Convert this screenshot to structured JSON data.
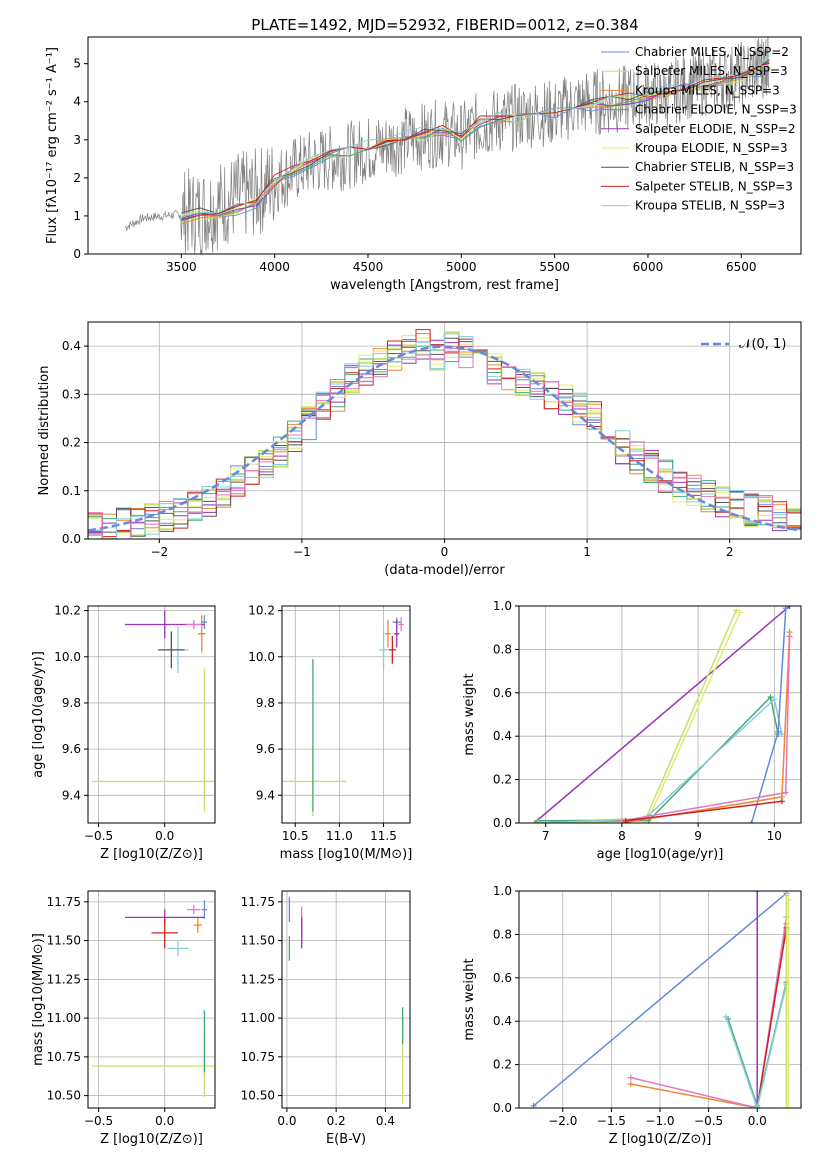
{
  "figure": {
    "title": "PLATE=1492, MJD=52932, FIBERID=0012, z=0.384"
  },
  "chart_data": [
    {
      "type": "line",
      "panel": "spectrum",
      "xlabel": "wavelength [Angstrom, rest frame]",
      "ylabel": "Flux [fλ10⁻¹⁷ erg cm⁻² s⁻¹ A⁻¹]",
      "xlim": [
        3000,
        6820
      ],
      "ylim": [
        0,
        5.7
      ],
      "xticks": [
        3500,
        4000,
        4500,
        5000,
        5500,
        6000,
        6500
      ],
      "yticks": [
        0,
        1,
        2,
        3,
        4,
        5
      ],
      "grid": false,
      "legend_position": "upper-right",
      "data_series": {
        "name": "",
        "color": "#808080",
        "x": [
          3200,
          3300,
          3400,
          3500,
          3600,
          3700,
          3800,
          3900,
          4000,
          4100,
          4200,
          4300,
          4400,
          4500,
          4600,
          4700,
          4800,
          4900,
          5000,
          5100,
          5200,
          5300,
          5400,
          5500,
          5600,
          5700,
          5800,
          5900,
          6000,
          6100,
          6200,
          6300,
          6400,
          6500,
          6600,
          6650
        ],
        "y": [
          0.7,
          0.95,
          1.0,
          1.05,
          1.1,
          1.3,
          1.5,
          1.6,
          1.9,
          2.2,
          2.4,
          2.5,
          2.6,
          2.75,
          2.85,
          3.0,
          3.1,
          3.2,
          3.1,
          3.4,
          3.5,
          3.6,
          3.7,
          3.7,
          3.9,
          4.0,
          4.0,
          4.1,
          4.2,
          4.2,
          4.4,
          4.5,
          4.6,
          4.7,
          4.9,
          5.1
        ]
      },
      "model_series": [
        {
          "name": "Chabrier MILES, N_SSP=2",
          "color": "#6688dd"
        },
        {
          "name": "Salpeter MILES, N_SSP=3",
          "color": "#c8e070"
        },
        {
          "name": "Kroupa MILES, N_SSP=3",
          "color": "#ee8833"
        },
        {
          "name": "Chabrier ELODIE, N_SSP=3",
          "color": "#44aa77"
        },
        {
          "name": "Salpeter ELODIE, N_SSP=2",
          "color": "#9933bb"
        },
        {
          "name": "Kroupa ELODIE, N_SSP=3",
          "color": "#e8e870"
        },
        {
          "name": "Chabrier STELIB, N_SSP=3",
          "color": "#555555"
        },
        {
          "name": "Salpeter STELIB, N_SSP=3",
          "color": "#cc2222"
        },
        {
          "name": "Kroupa STELIB, N_SSP=3",
          "color": "#88ccdd"
        }
      ],
      "model_curve": {
        "x": [
          3500,
          3600,
          3700,
          3800,
          3900,
          4000,
          4100,
          4200,
          4300,
          4400,
          4500,
          4600,
          4700,
          4800,
          4900,
          5000,
          5100,
          5200,
          5300,
          5400,
          5500,
          5600,
          5700,
          5800,
          5900,
          6000,
          6100,
          6200,
          6300,
          6400,
          6500,
          6600,
          6650
        ],
        "y": [
          0.95,
          1.05,
          1.1,
          1.2,
          1.35,
          1.9,
          2.2,
          2.4,
          2.55,
          2.7,
          2.8,
          2.95,
          3.05,
          3.15,
          3.25,
          3.1,
          3.45,
          3.55,
          3.6,
          3.7,
          3.75,
          3.85,
          3.95,
          4.0,
          4.05,
          4.15,
          4.25,
          4.35,
          4.45,
          4.55,
          4.7,
          4.85,
          5.0
        ]
      }
    },
    {
      "type": "line",
      "panel": "residuals",
      "xlabel": "(data-model)/error",
      "ylabel": "Normed distribution",
      "xlim": [
        -2.5,
        2.5
      ],
      "ylim": [
        0,
        0.45
      ],
      "xticks": [
        -2,
        -1,
        0,
        1,
        2
      ],
      "yticks": [
        0.0,
        0.1,
        0.2,
        0.3,
        0.4
      ],
      "grid": true,
      "legend_position": "upper-right",
      "legend": "𝒩(0, 1)",
      "gaussian_color": "#6688dd",
      "hist_bins": [
        -2.5,
        -2.4,
        -2.3,
        -2.2,
        -2.1,
        -2.0,
        -1.9,
        -1.8,
        -1.7,
        -1.6,
        -1.5,
        -1.4,
        -1.3,
        -1.2,
        -1.1,
        -1.0,
        -0.9,
        -0.8,
        -0.7,
        -0.6,
        -0.5,
        -0.4,
        -0.3,
        -0.2,
        -0.1,
        0.0,
        0.1,
        0.2,
        0.3,
        0.4,
        0.5,
        0.6,
        0.7,
        0.8,
        0.9,
        1.0,
        1.1,
        1.2,
        1.3,
        1.4,
        1.5,
        1.6,
        1.7,
        1.8,
        1.9,
        2.0,
        2.1,
        2.2,
        2.3,
        2.4,
        2.5
      ],
      "hist_values": [
        0.02,
        0.02,
        0.03,
        0.03,
        0.04,
        0.05,
        0.05,
        0.07,
        0.08,
        0.1,
        0.12,
        0.14,
        0.16,
        0.18,
        0.21,
        0.24,
        0.27,
        0.3,
        0.33,
        0.35,
        0.37,
        0.38,
        0.39,
        0.4,
        0.38,
        0.4,
        0.39,
        0.37,
        0.35,
        0.34,
        0.33,
        0.31,
        0.3,
        0.29,
        0.27,
        0.25,
        0.22,
        0.19,
        0.17,
        0.15,
        0.13,
        0.11,
        0.1,
        0.09,
        0.08,
        0.07,
        0.06,
        0.06,
        0.05,
        0.04
      ]
    },
    {
      "type": "scatter",
      "panel": "age-vs-Z",
      "xlabel": "Z [log10(Z/Z⊙)]",
      "ylabel": "age  [log10(age/yr)]",
      "xlim": [
        -0.58,
        0.38
      ],
      "ylim": [
        9.28,
        10.22
      ],
      "xticks": [
        -0.5,
        0.0
      ],
      "xtick_labels": [
        "−0.5",
        "0.0"
      ],
      "yticks": [
        9.4,
        9.6,
        9.8,
        10.0,
        10.2
      ],
      "grid": true,
      "points": [
        {
          "x": 0.3,
          "y": 10.15,
          "xerr": 0.02,
          "yerr": 0.03,
          "color": "#6688dd"
        },
        {
          "x": 0.28,
          "y": 10.1,
          "xerr": 0.03,
          "yerr": 0.08,
          "color": "#ee8833"
        },
        {
          "x": 0.0,
          "y": 10.14,
          "xerr": 0.3,
          "yerr": 0.06,
          "color": "#9933bb"
        },
        {
          "x": 0.1,
          "y": 10.03,
          "xerr": 0.08,
          "yerr": 0.1,
          "color": "#88ccdd"
        },
        {
          "x": 0.05,
          "y": 10.03,
          "xerr": 0.1,
          "yerr": 0.08,
          "color": "#555555"
        },
        {
          "x": 0.3,
          "y": 9.46,
          "xerr": 0.85,
          "yerr": 0.13,
          "color": "#c8e070"
        },
        {
          "x": 0.3,
          "y": 9.65,
          "xerr": 0.0,
          "yerr": 0.3,
          "color": "#c8e070"
        },
        {
          "x": 0.22,
          "y": 10.14,
          "xerr": 0.06,
          "yerr": 0.02,
          "color": "#e377c2"
        }
      ]
    },
    {
      "type": "scatter",
      "panel": "age-vs-mass",
      "xlabel": "mass [log10(M/M⊙)]",
      "ylabel": "",
      "xlim": [
        10.35,
        11.8
      ],
      "ylim": [
        9.28,
        10.22
      ],
      "xticks": [
        10.5,
        11.0,
        11.5
      ],
      "yticks": [
        9.4,
        9.6,
        9.8,
        10.0,
        10.2
      ],
      "grid": true,
      "points": [
        {
          "x": 11.65,
          "y": 10.15,
          "xerr": 0.05,
          "yerr": 0.02,
          "color": "#6688dd"
        },
        {
          "x": 11.55,
          "y": 10.1,
          "xerr": 0.03,
          "yerr": 0.06,
          "color": "#ee8833"
        },
        {
          "x": 11.65,
          "y": 10.1,
          "xerr": 0.03,
          "yerr": 0.06,
          "color": "#9933bb"
        },
        {
          "x": 11.5,
          "y": 10.03,
          "xerr": 0.05,
          "yerr": 0.08,
          "color": "#88ccdd"
        },
        {
          "x": 11.6,
          "y": 10.03,
          "xerr": 0.04,
          "yerr": 0.06,
          "color": "#cc2222"
        },
        {
          "x": 10.7,
          "y": 9.46,
          "xerr": 0.38,
          "yerr": 0.15,
          "color": "#c8e070"
        },
        {
          "x": 10.7,
          "y": 9.66,
          "xerr": 0.0,
          "yerr": 0.33,
          "color": "#44aa77"
        },
        {
          "x": 11.7,
          "y": 10.14,
          "xerr": 0.03,
          "yerr": 0.03,
          "color": "#e377c2"
        }
      ]
    },
    {
      "type": "line",
      "panel": "mass-weight-vs-age",
      "xlabel": "age  [log10(age/yr)]",
      "ylabel": "mass weight",
      "xlim": [
        6.65,
        10.35
      ],
      "ylim": [
        0,
        1.0
      ],
      "xticks": [
        7,
        8,
        9,
        10
      ],
      "yticks": [
        0.0,
        0.2,
        0.4,
        0.6,
        0.8,
        1.0
      ],
      "grid": true,
      "series": [
        {
          "color": "#9933bb",
          "x": [
            6.85,
            10.2
          ],
          "y": [
            0.0,
            1.0
          ]
        },
        {
          "color": "#c8e070",
          "x": [
            6.85,
            8.3,
            9.5
          ],
          "y": [
            0.0,
            0.01,
            0.98
          ]
        },
        {
          "color": "#e8e870",
          "x": [
            6.9,
            8.35,
            9.55
          ],
          "y": [
            0.01,
            0.02,
            0.97
          ]
        },
        {
          "color": "#44aa77",
          "x": [
            6.9,
            8.35,
            9.95,
            10.05
          ],
          "y": [
            0.01,
            0.01,
            0.58,
            0.41
          ]
        },
        {
          "color": "#88ccdd",
          "x": [
            6.9,
            8.3,
            10.0,
            10.1
          ],
          "y": [
            0.0,
            0.02,
            0.57,
            0.41
          ]
        },
        {
          "color": "#6688dd",
          "x": [
            9.7,
            10.05,
            10.15
          ],
          "y": [
            0.0,
            0.42,
            0.99
          ]
        },
        {
          "color": "#ee8833",
          "x": [
            8.0,
            10.1,
            10.2
          ],
          "y": [
            0.0,
            0.12,
            0.88
          ]
        },
        {
          "color": "#e377c2",
          "x": [
            8.0,
            10.15,
            10.2
          ],
          "y": [
            0.01,
            0.14,
            0.86
          ]
        },
        {
          "color": "#cc2222",
          "x": [
            8.05,
            10.1
          ],
          "y": [
            0.01,
            0.1
          ]
        }
      ]
    },
    {
      "type": "scatter",
      "panel": "mass-vs-Z",
      "xlabel": "Z [log10(Z/Z⊙)]",
      "ylabel": "mass [log10(M/M⊙)]",
      "xlim": [
        -0.58,
        0.38
      ],
      "ylim": [
        10.42,
        11.82
      ],
      "xticks": [
        -0.5,
        0.0
      ],
      "xtick_labels": [
        "−0.5",
        "0.0"
      ],
      "yticks": [
        10.5,
        10.75,
        11.0,
        11.25,
        11.5,
        11.75
      ],
      "grid": true,
      "points": [
        {
          "x": 0.3,
          "y": 11.7,
          "xerr": 0.02,
          "yerr": 0.06,
          "color": "#6688dd"
        },
        {
          "x": 0.25,
          "y": 11.6,
          "xerr": 0.03,
          "yerr": 0.05,
          "color": "#ee8833"
        },
        {
          "x": 0.0,
          "y": 11.65,
          "xerr": 0.3,
          "yerr": 0.05,
          "color": "#9933bb"
        },
        {
          "x": 0.1,
          "y": 11.45,
          "xerr": 0.08,
          "yerr": 0.05,
          "color": "#88ccdd"
        },
        {
          "x": 0.0,
          "y": 11.55,
          "xerr": 0.1,
          "yerr": 0.1,
          "color": "#cc2222"
        },
        {
          "x": 0.3,
          "y": 10.69,
          "xerr": 0.85,
          "yerr": 0.2,
          "color": "#c8e070"
        },
        {
          "x": 0.3,
          "y": 10.85,
          "xerr": 0.0,
          "yerr": 0.2,
          "color": "#44aa77"
        },
        {
          "x": 0.22,
          "y": 11.7,
          "xerr": 0.05,
          "yerr": 0.03,
          "color": "#e377c2"
        }
      ]
    },
    {
      "type": "scatter",
      "panel": "mass-vs-ebv",
      "xlabel": "E(B-V)",
      "ylabel": "",
      "xlim": [
        -0.02,
        0.5
      ],
      "ylim": [
        10.42,
        11.82
      ],
      "xticks": [
        0.0,
        0.2,
        0.4
      ],
      "yticks": [
        10.5,
        10.75,
        11.0,
        11.25,
        11.5,
        11.75
      ],
      "grid": true,
      "points": [
        {
          "x": 0.01,
          "y": 11.7,
          "xerr": 0.0,
          "yerr": 0.08,
          "color": "#6688dd"
        },
        {
          "x": 0.01,
          "y": 11.45,
          "xerr": 0.0,
          "yerr": 0.08,
          "color": "#44aa77"
        },
        {
          "x": 0.06,
          "y": 11.6,
          "xerr": 0.0,
          "yerr": 0.12,
          "color": "#e377c2"
        },
        {
          "x": 0.06,
          "y": 11.55,
          "xerr": 0.0,
          "yerr": 0.1,
          "color": "#9933bb"
        },
        {
          "x": 0.47,
          "y": 10.75,
          "xerr": 0.0,
          "yerr": 0.3,
          "color": "#c8e070"
        },
        {
          "x": 0.47,
          "y": 10.95,
          "xerr": 0.0,
          "yerr": 0.12,
          "color": "#44aa77"
        }
      ]
    },
    {
      "type": "line",
      "panel": "mass-weight-vs-Z",
      "xlabel": "Z [log10(Z/Z⊙)]",
      "ylabel": "mass weight",
      "xlim": [
        -2.45,
        0.45
      ],
      "ylim": [
        0,
        1.0
      ],
      "xticks": [
        -2.0,
        -1.5,
        -1.0,
        -0.5,
        0.0
      ],
      "xtick_labels": [
        "−2.0",
        "−1.5",
        "−1.0",
        "−0.5",
        "0.0"
      ],
      "yticks": [
        0.0,
        0.2,
        0.4,
        0.6,
        0.8,
        1.0
      ],
      "grid": true,
      "series": [
        {
          "color": "#6688dd",
          "x": [
            -2.3,
            0.3
          ],
          "y": [
            0.01,
            0.99
          ]
        },
        {
          "color": "#9933bb",
          "x": [
            0.0,
            0.0
          ],
          "y": [
            0.0,
            1.0
          ]
        },
        {
          "color": "#ee8833",
          "x": [
            -1.3,
            0.0,
            0.3
          ],
          "y": [
            0.11,
            0.0,
            0.85
          ]
        },
        {
          "color": "#e377c2",
          "x": [
            -1.3,
            0.0,
            0.3
          ],
          "y": [
            0.14,
            0.0,
            0.88
          ]
        },
        {
          "color": "#cc2222",
          "x": [
            0.0,
            0.3
          ],
          "y": [
            0.0,
            0.83
          ]
        },
        {
          "color": "#44aa77",
          "x": [
            -0.3,
            0.0,
            0.3
          ],
          "y": [
            0.41,
            0.01,
            0.58
          ]
        },
        {
          "color": "#88ccdd",
          "x": [
            -0.32,
            0.0,
            0.3
          ],
          "y": [
            0.42,
            0.0,
            0.57
          ]
        },
        {
          "color": "#c8e070",
          "x": [
            0.3,
            0.3
          ],
          "y": [
            0.0,
            0.98
          ]
        },
        {
          "color": "#e8e870",
          "x": [
            0.32,
            0.32
          ],
          "y": [
            0.0,
            0.96
          ]
        }
      ]
    }
  ]
}
